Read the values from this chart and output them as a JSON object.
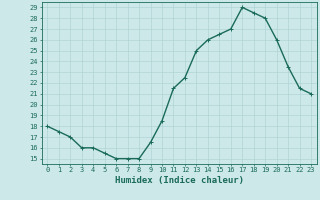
{
  "title": "",
  "xlabel": "Humidex (Indice chaleur)",
  "ylabel": "",
  "x_values": [
    0,
    1,
    2,
    3,
    4,
    5,
    6,
    7,
    8,
    9,
    10,
    11,
    12,
    13,
    14,
    15,
    16,
    17,
    18,
    19,
    20,
    21,
    22,
    23
  ],
  "y_values": [
    18,
    17.5,
    17,
    16,
    16,
    15.5,
    15,
    15,
    15,
    16.5,
    18.5,
    21.5,
    22.5,
    25,
    26,
    26.5,
    27,
    29,
    28.5,
    28,
    26,
    23.5,
    21.5,
    21
  ],
  "line_color": "#1a6b5a",
  "marker": "+",
  "marker_size": 3,
  "bg_color": "#cce8e8",
  "grid_color": "#aacfcf",
  "ylim_min": 14.5,
  "ylim_max": 29.5,
  "xlim_min": -0.5,
  "xlim_max": 23.5,
  "yticks": [
    15,
    16,
    17,
    18,
    19,
    20,
    21,
    22,
    23,
    24,
    25,
    26,
    27,
    28,
    29
  ],
  "xticks": [
    0,
    1,
    2,
    3,
    4,
    5,
    6,
    7,
    8,
    9,
    10,
    11,
    12,
    13,
    14,
    15,
    16,
    17,
    18,
    19,
    20,
    21,
    22,
    23
  ],
  "tick_labelsize": 5,
  "xlabel_fontsize": 6.5,
  "line_width": 1.0,
  "marker_edge_width": 0.7
}
